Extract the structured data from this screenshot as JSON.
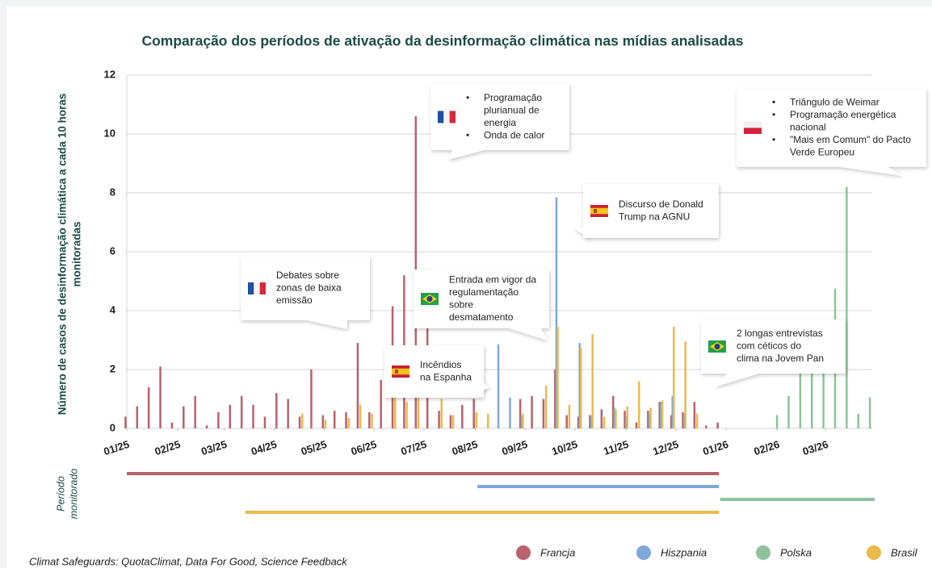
{
  "chart_data": {
    "type": "bar",
    "title": "Comparação dos períodos de ativação da desinformação climática nas mídias analisadas",
    "y_label": [
      "Número de casos de desinformação climática a cada 10 horas",
      "monitoradas"
    ],
    "period_label": [
      "Período",
      "monitorado"
    ],
    "source": "Climat Safeguards: QuotaClimat, Data For Good, Science Feedback",
    "xlim": [
      0,
      64.2
    ],
    "xticks": [
      {
        "value": 0,
        "label": "01/25"
      },
      {
        "value": 4.4,
        "label": "02/25"
      },
      {
        "value": 8.4,
        "label": "03/25"
      },
      {
        "value": 12.7,
        "label": "04/25"
      },
      {
        "value": 17,
        "label": "05/25"
      },
      {
        "value": 21.3,
        "label": "06/25"
      },
      {
        "value": 25.6,
        "label": "07/25"
      },
      {
        "value": 30,
        "label": "08/25"
      },
      {
        "value": 34.3,
        "label": "09/25"
      },
      {
        "value": 38.6,
        "label": "10/25"
      },
      {
        "value": 43,
        "label": "11/25"
      },
      {
        "value": 47.3,
        "label": "12/25"
      },
      {
        "value": 51.6,
        "label": "01/26"
      },
      {
        "value": 56,
        "label": "02/26"
      },
      {
        "value": 60.2,
        "label": "03/26"
      }
    ],
    "ylim": [
      0,
      12
    ],
    "yticks": [
      0,
      2,
      4,
      6,
      8,
      10,
      12
    ],
    "grid": true,
    "series": [
      {
        "name": "Francja",
        "color": "#b8626f",
        "period": [
          0,
          51
        ],
        "x": [
          0,
          1,
          2,
          3,
          4,
          5,
          6,
          7,
          8,
          9,
          10,
          11,
          12,
          13,
          14,
          15,
          16,
          17,
          18,
          19,
          20,
          21,
          22,
          23,
          24,
          25,
          26,
          27,
          28,
          29,
          30,
          34,
          35,
          36,
          37,
          38,
          39,
          40,
          41,
          42,
          43,
          44,
          45,
          46,
          47,
          48,
          49,
          50,
          51
        ],
        "values": [
          0.4,
          0.75,
          1.4,
          2.1,
          0.2,
          0.75,
          1.1,
          0.1,
          0.55,
          0.8,
          1.1,
          0.8,
          0.4,
          1.2,
          1.0,
          0.4,
          2.0,
          0.45,
          0.6,
          0.55,
          2.9,
          0.55,
          1.65,
          4.15,
          5.2,
          10.6,
          5.4,
          0.6,
          0.45,
          0.8,
          1.0,
          1.0,
          1.1,
          1.0,
          2.0,
          0.45,
          0.4,
          0.45,
          0.65,
          1.1,
          0.6,
          0.2,
          0.6,
          0.9,
          0.45,
          0.55,
          0.9,
          0.1,
          0.2
        ]
      },
      {
        "name": "Hiszpania",
        "color": "#7fa8da",
        "period": [
          30.2,
          51
        ],
        "x": [
          32,
          33,
          34,
          37,
          39,
          40,
          42,
          43,
          45,
          46,
          47,
          48
        ],
        "values": [
          2.85,
          1.05,
          0.4,
          7.85,
          2.9,
          0.4,
          0.7,
          0.4,
          0.5,
          0.9,
          1.1,
          0.5
        ]
      },
      {
        "name": "Polska",
        "color": "#8fc29c",
        "period": [
          51.1,
          64.4
        ],
        "x": [
          56,
          57,
          58,
          59,
          60,
          61,
          62,
          63,
          64
        ],
        "values": [
          0.45,
          1.1,
          1.9,
          2.0,
          2.0,
          4.75,
          8.2,
          0.5,
          1.05
        ]
      },
      {
        "name": "Brasil",
        "color": "#e9b94c",
        "period": [
          10.2,
          51
        ],
        "x": [
          15,
          17,
          19,
          20,
          21,
          23,
          24,
          25,
          27,
          28,
          30,
          31,
          34,
          36,
          37,
          38,
          39,
          40,
          41,
          42,
          43,
          44,
          45,
          46,
          47,
          48,
          49
        ],
        "values": [
          0.5,
          0.3,
          0.35,
          0.8,
          0.5,
          1.5,
          0.9,
          1.8,
          1.0,
          0.45,
          0.55,
          0.5,
          0.5,
          1.45,
          3.45,
          0.8,
          2.75,
          3.2,
          0.4,
          0.65,
          0.75,
          1.6,
          0.7,
          0.95,
          3.45,
          2.95,
          0.5
        ]
      }
    ],
    "annotations": [
      {
        "items": [
          [
            "Programação",
            "plurianual de",
            "energia"
          ],
          [
            "Onda de calor"
          ]
        ]
      },
      {
        "items": [
          [
            "Triângulo de Weimar"
          ],
          [
            "Programação energética",
            "nacional"
          ],
          [
            "\"Mais em Comum\" do Pacto",
            "Verde Europeu"
          ]
        ]
      },
      {
        "items": [
          [
            "Discurso de Donald",
            "Trump na AGNU"
          ]
        ]
      },
      {
        "items": [
          [
            "Debates sobre",
            "zonas de baixa",
            "emissão"
          ]
        ]
      },
      {
        "items": [
          [
            "Entrada em vigor da",
            "regulamentação",
            "sobre",
            "desmatamento"
          ]
        ]
      },
      {
        "items": [
          [
            "Incêndios",
            "na Espanha"
          ]
        ]
      },
      {
        "items": [
          [
            "2 longas entrevistas",
            "com céticos do",
            "clima na Jovem Pan"
          ]
        ]
      }
    ]
  }
}
